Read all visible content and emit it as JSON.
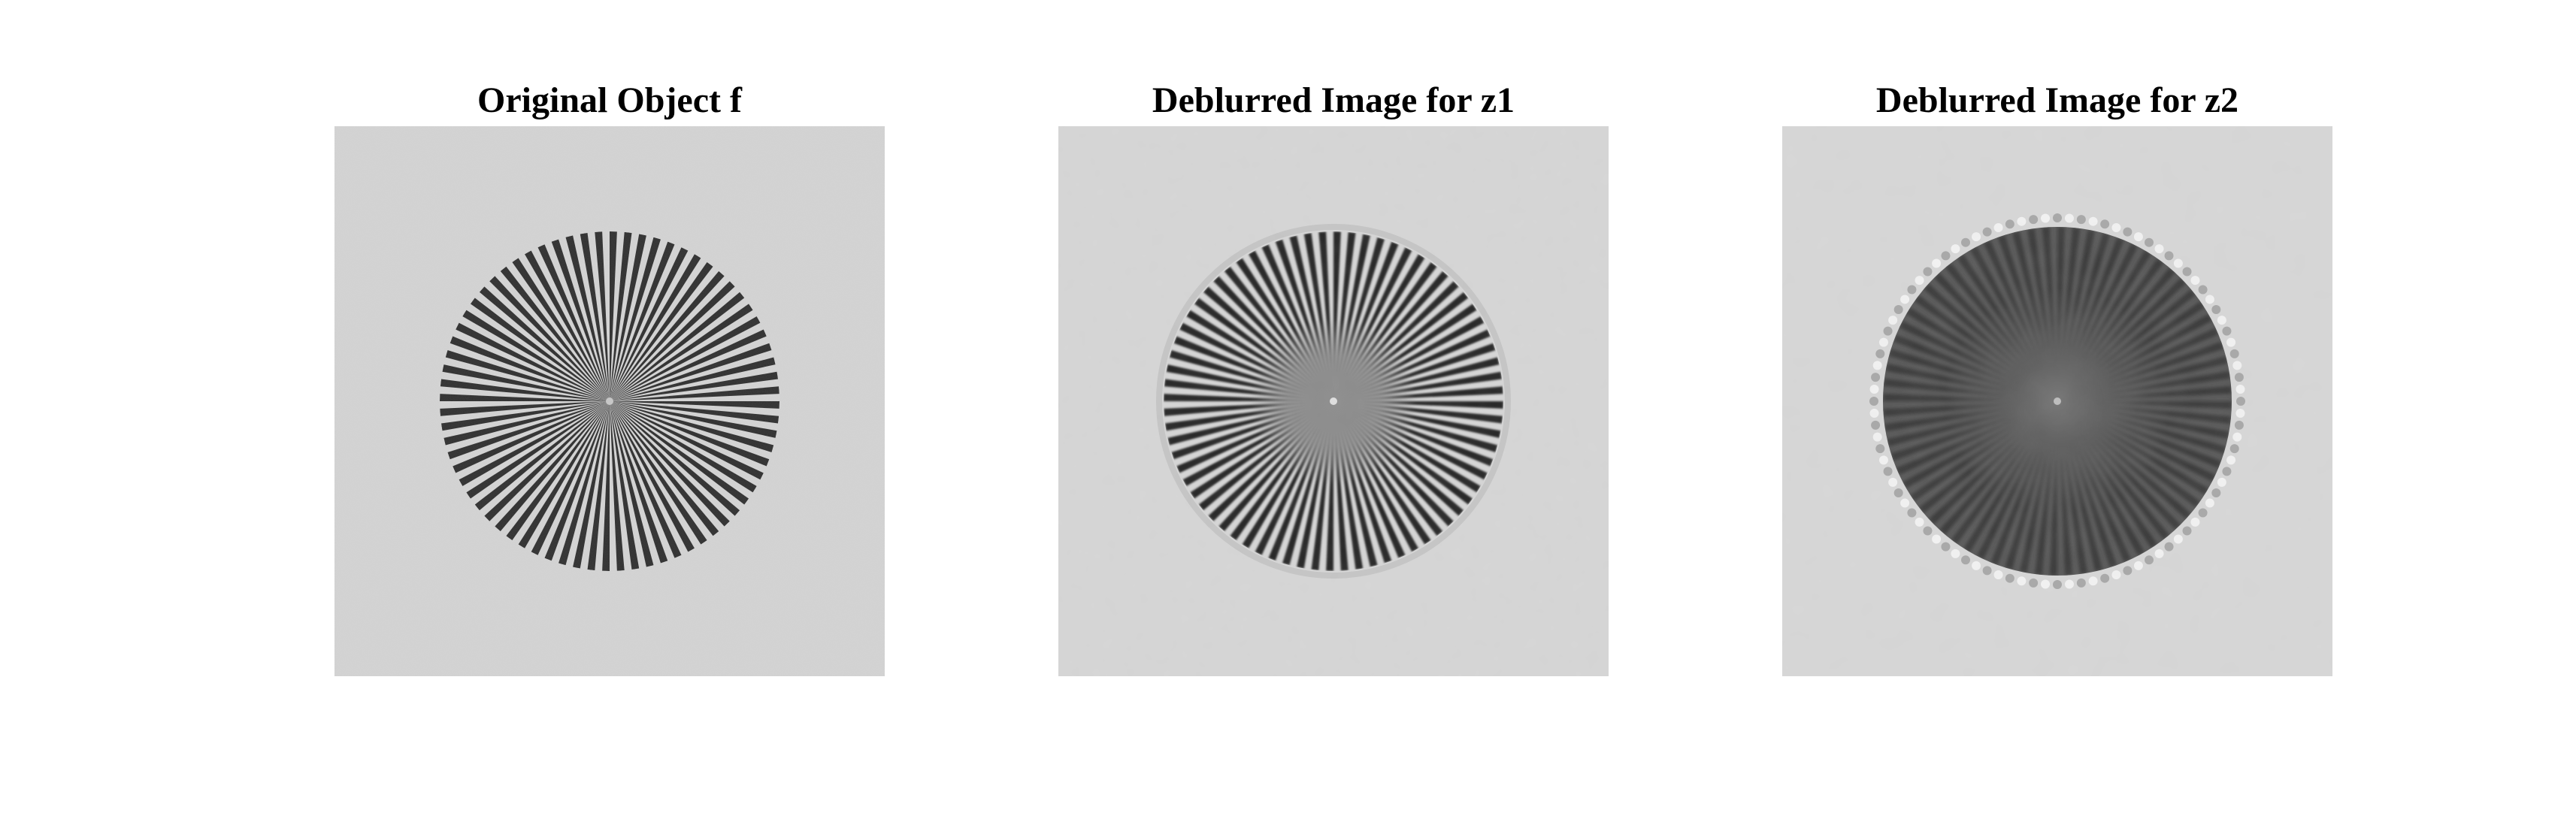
{
  "figure": {
    "panels": [
      {
        "title": "Original Object f",
        "image": "siemens-star-sharp",
        "spokes": 72,
        "background_color": "#d4d4d4",
        "spoke_color": "#2e2e2e"
      },
      {
        "title": "Deblurred Image for z1",
        "image": "siemens-star-deblurred-center-gray",
        "spokes": 72,
        "background_color": "#d6d6d6",
        "spoke_color": "#252525"
      },
      {
        "title": "Deblurred Image for z2",
        "image": "siemens-star-deblurred-ringing",
        "spokes": 72,
        "background_color": "#d7d7d7",
        "spoke_color": "#3a3a3a"
      }
    ]
  }
}
